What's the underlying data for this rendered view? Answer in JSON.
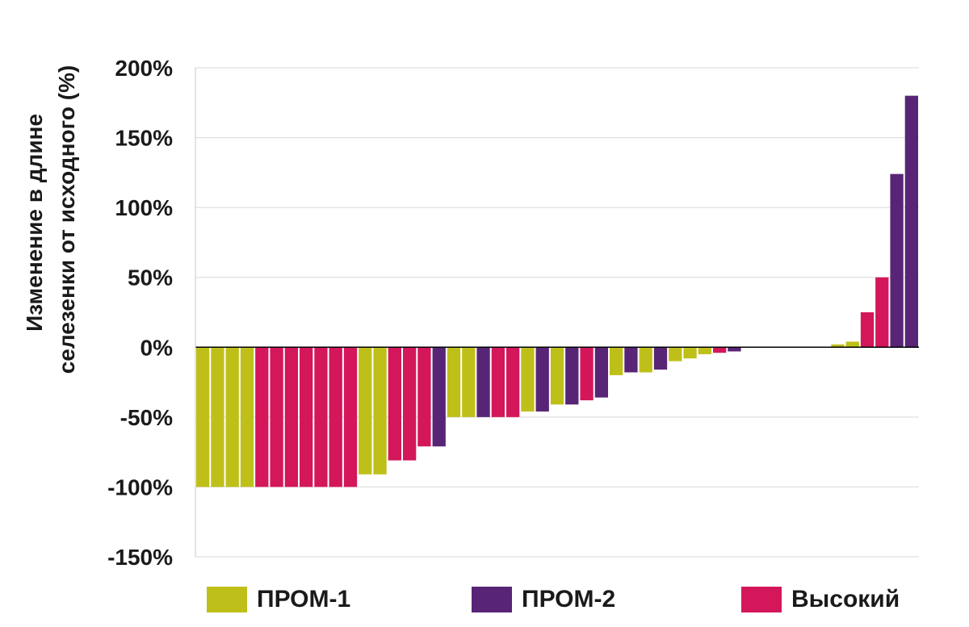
{
  "chart_data": {
    "type": "bar",
    "title": "",
    "ylabel_lines": [
      "Изменение в длине",
      "селезенки от исходного (%)"
    ],
    "ylim": [
      -150,
      200
    ],
    "yticks": [
      200,
      150,
      100,
      50,
      0,
      -50,
      -100,
      -150
    ],
    "ytick_labels": [
      "200%",
      "150%",
      "100%",
      "50%",
      "0%",
      "-50%",
      "-100%",
      "-150%"
    ],
    "grid": "horizontal",
    "legend_position": "bottom",
    "series": [
      {
        "name": "ПРОМ-1",
        "color": "#bfbf1a"
      },
      {
        "name": "ПРОМ-2",
        "color": "#582576"
      },
      {
        "name": "Высокий",
        "color": "#d3175a"
      }
    ],
    "bars": [
      {
        "group": 0,
        "value": -100
      },
      {
        "group": 0,
        "value": -100
      },
      {
        "group": 0,
        "value": -100
      },
      {
        "group": 0,
        "value": -100
      },
      {
        "group": 2,
        "value": -100
      },
      {
        "group": 2,
        "value": -100
      },
      {
        "group": 2,
        "value": -100
      },
      {
        "group": 2,
        "value": -100
      },
      {
        "group": 2,
        "value": -100
      },
      {
        "group": 2,
        "value": -100
      },
      {
        "group": 2,
        "value": -100
      },
      {
        "group": 0,
        "value": -91
      },
      {
        "group": 0,
        "value": -91
      },
      {
        "group": 2,
        "value": -81
      },
      {
        "group": 2,
        "value": -81
      },
      {
        "group": 2,
        "value": -71
      },
      {
        "group": 1,
        "value": -71
      },
      {
        "group": 0,
        "value": -50
      },
      {
        "group": 0,
        "value": -50
      },
      {
        "group": 1,
        "value": -50
      },
      {
        "group": 2,
        "value": -50
      },
      {
        "group": 2,
        "value": -50
      },
      {
        "group": 0,
        "value": -46
      },
      {
        "group": 1,
        "value": -46
      },
      {
        "group": 0,
        "value": -41
      },
      {
        "group": 1,
        "value": -41
      },
      {
        "group": 2,
        "value": -38
      },
      {
        "group": 1,
        "value": -36
      },
      {
        "group": 0,
        "value": -20
      },
      {
        "group": 1,
        "value": -18
      },
      {
        "group": 0,
        "value": -18
      },
      {
        "group": 1,
        "value": -16
      },
      {
        "group": 0,
        "value": -10
      },
      {
        "group": 0,
        "value": -8
      },
      {
        "group": 0,
        "value": -5
      },
      {
        "group": 2,
        "value": -4
      },
      {
        "group": 1,
        "value": -3
      },
      {
        "group": 0,
        "value": 0
      },
      {
        "group": 0,
        "value": 0
      },
      {
        "group": 0,
        "value": 0
      },
      {
        "group": 0,
        "value": 0
      },
      {
        "group": 0,
        "value": 0
      },
      {
        "group": 0,
        "value": 0
      },
      {
        "group": 0,
        "value": 2
      },
      {
        "group": 0,
        "value": 4
      },
      {
        "group": 2,
        "value": 25
      },
      {
        "group": 2,
        "value": 50
      },
      {
        "group": 1,
        "value": 124
      },
      {
        "group": 1,
        "value": 180
      }
    ]
  }
}
